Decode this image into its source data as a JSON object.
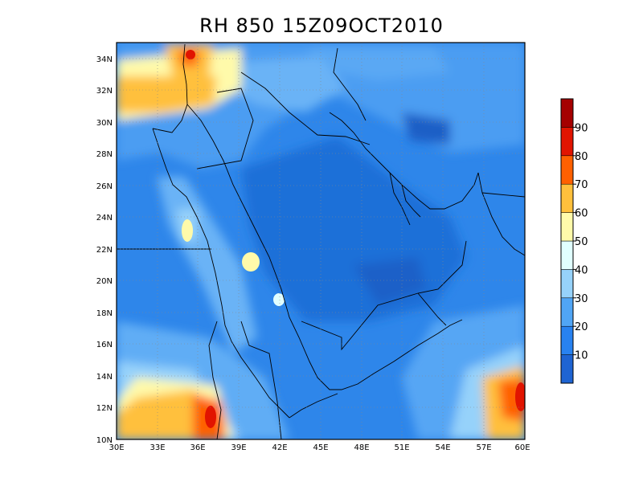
{
  "title": "RH 850 15Z09OCT2010",
  "map": {
    "lat_labels": [
      "34N",
      "32N",
      "30N",
      "28N",
      "26N",
      "24N",
      "22N",
      "20N",
      "18N",
      "16N",
      "14N",
      "12N",
      "10N"
    ],
    "lon_labels": [
      "30E",
      "33E",
      "36E",
      "39E",
      "42E",
      "45E",
      "48E",
      "51E",
      "54E",
      "57E",
      "60E"
    ],
    "extent": {
      "lon": [
        30,
        60
      ],
      "lat": [
        10,
        35
      ]
    }
  },
  "colorbar": {
    "labels": [
      "10",
      "20",
      "30",
      "40",
      "50",
      "60",
      "70",
      "80",
      "90"
    ],
    "colors": [
      "#1e64d2",
      "#2882f0",
      "#50a5f5",
      "#96d2fa",
      "#e1ffff",
      "#fffaaa",
      "#ffc03c",
      "#ff6000",
      "#e11400",
      "#a50000"
    ]
  }
}
